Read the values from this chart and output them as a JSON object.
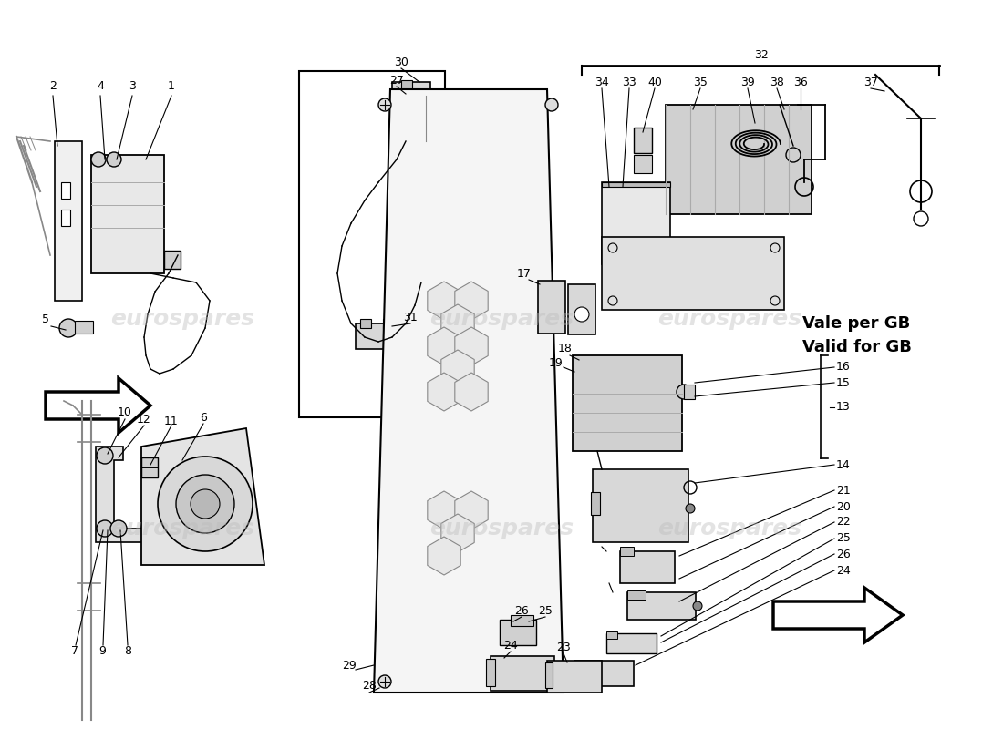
{
  "background_color": "#ffffff",
  "watermark_text": "eurospares",
  "watermark_color": "#bbbbbb",
  "watermark_alpha": 0.4,
  "vale_per_gb": "Vale per GB\nValid for GB",
  "vale_per_gb_fontsize": 13
}
